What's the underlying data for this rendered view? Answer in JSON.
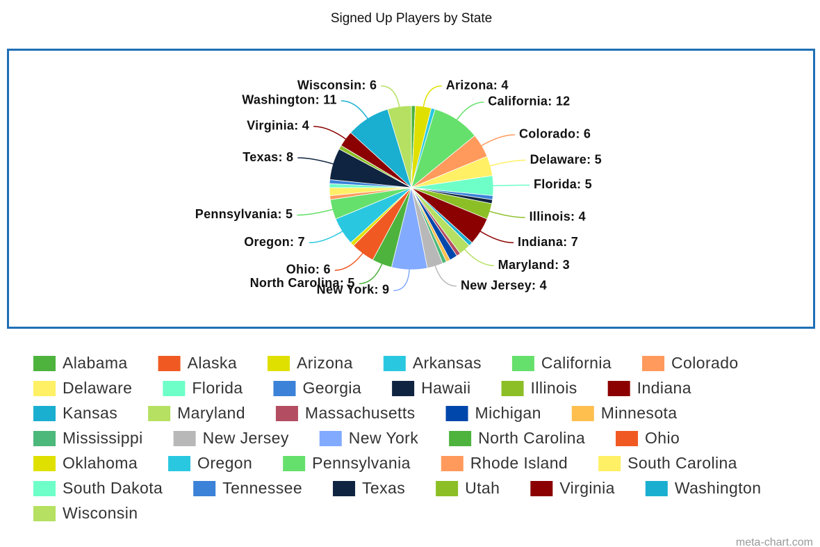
{
  "chart_data": {
    "type": "pie",
    "title": "Signed Up Players by State",
    "categories": [
      "Alabama",
      "Alaska",
      "Arizona",
      "Arkansas",
      "California",
      "Colorado",
      "Delaware",
      "Florida",
      "Georgia",
      "Hawaii",
      "Illinois",
      "Indiana",
      "Kansas",
      "Maryland",
      "Massachusetts",
      "Michigan",
      "Minnesota",
      "Mississippi",
      "New Jersey",
      "New York",
      "North Carolina",
      "Ohio",
      "Oklahoma",
      "Oregon",
      "Pennsylvania",
      "Rhode Island",
      "South Carolina",
      "South Dakota",
      "Tennessee",
      "Texas",
      "Utah",
      "Virginia",
      "Washington",
      "Wisconsin"
    ],
    "values": [
      1,
      0,
      4,
      1,
      12,
      6,
      5,
      5,
      1,
      1,
      4,
      7,
      1,
      3,
      1,
      2,
      1,
      1,
      4,
      9,
      5,
      6,
      1,
      7,
      5,
      1,
      2,
      1,
      1,
      8,
      1,
      4,
      11,
      6
    ],
    "value_labels": [
      null,
      null,
      "Arizona: 4",
      null,
      "California: 12",
      "Colorado: 6",
      "Delaware: 5",
      "Florida: 5",
      null,
      null,
      "Illinois: 4",
      "Indiana: 7",
      null,
      "Maryland: 3",
      null,
      null,
      null,
      null,
      "New Jersey: 4",
      "New York: 9",
      "North Carolina: 5",
      "Ohio: 6",
      null,
      "Oregon: 7",
      "Pennsylvania: 5",
      null,
      null,
      null,
      null,
      "Texas: 8",
      null,
      "Virginia: 4",
      "Washington: 11",
      "Wisconsin: 6"
    ],
    "colors": [
      "#4db33d",
      "#f05a22",
      "#e0e000",
      "#2ac8e0",
      "#66e06c",
      "#ff9a5c",
      "#fff066",
      "#6effc8",
      "#3b82d8",
      "#0f2440",
      "#8cbf26",
      "#8b0000",
      "#1aafd0",
      "#b5e061",
      "#b34d62",
      "#0047ab",
      "#ffbf4f",
      "#4cb87a",
      "#b8b8b8",
      "#82aaff",
      "#4db33d",
      "#f05a22",
      "#e0e000",
      "#2ac8e0",
      "#66e06c",
      "#ff9a5c",
      "#fff066",
      "#6effc8",
      "#3b82d8",
      "#0f2440",
      "#8cbf26",
      "#8b0000",
      "#1aafd0",
      "#b5e061"
    ],
    "legend": "bottom",
    "watermark": "meta-chart.com"
  }
}
